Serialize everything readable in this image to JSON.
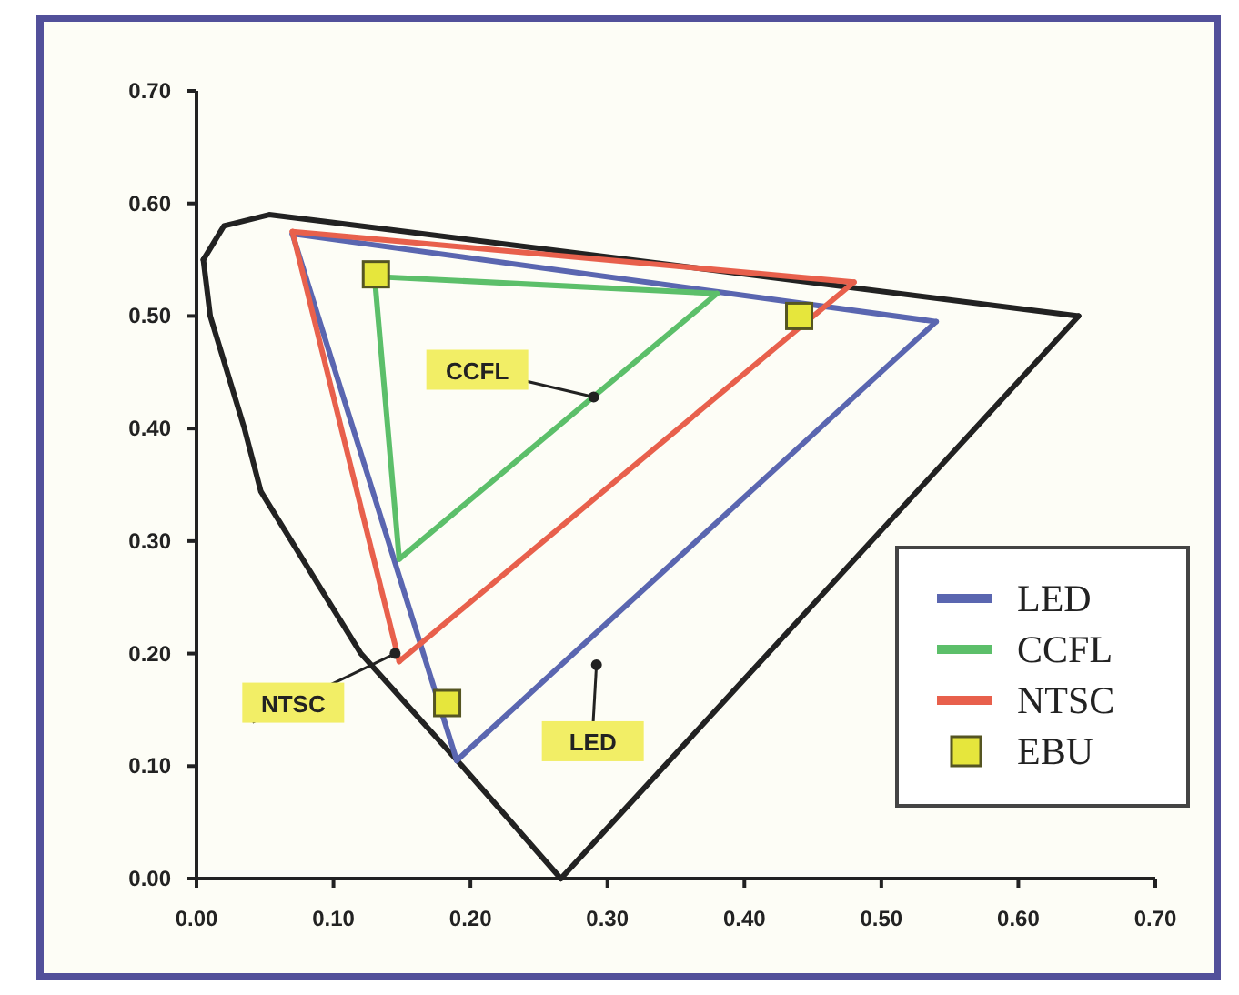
{
  "chart_data": {
    "type": "line",
    "xlim": [
      0,
      0.7
    ],
    "ylim": [
      0,
      0.7
    ],
    "xticks": [
      {
        "value": 0,
        "label": "0.00"
      },
      {
        "value": 0.1,
        "label": "0.10"
      },
      {
        "value": 0.2,
        "label": "0.20"
      },
      {
        "value": 0.3,
        "label": "0.30"
      },
      {
        "value": 0.4,
        "label": "0.40"
      },
      {
        "value": 0.5,
        "label": "0.50"
      },
      {
        "value": 0.6,
        "label": "0.60"
      },
      {
        "value": 0.7,
        "label": "0.70"
      }
    ],
    "yticks": [
      {
        "value": 0,
        "label": "0.00"
      },
      {
        "value": 0.1,
        "label": "0.10"
      },
      {
        "value": 0.2,
        "label": "0.20"
      },
      {
        "value": 0.3,
        "label": "0.30"
      },
      {
        "value": 0.4,
        "label": "0.40"
      },
      {
        "value": 0.5,
        "label": "0.50"
      },
      {
        "value": 0.6,
        "label": "0.60"
      },
      {
        "value": 0.7,
        "label": "0.70"
      }
    ],
    "grid": false,
    "legend": "bottom right",
    "line_style": "solid",
    "marker": "none",
    "series": [
      {
        "color": "#222222",
        "x": [
          0.005,
          0.01,
          0.035,
          0.047,
          0.12,
          0.194,
          0.266
        ],
        "values": [
          0.55,
          0.5,
          0.4,
          0.344,
          0.2,
          0.1,
          0
        ]
      },
      {
        "color": "#222222",
        "x": [
          0.005,
          0.02,
          0.053,
          0.1,
          0.644
        ],
        "values": [
          0.55,
          0.58,
          0.59,
          0.583,
          0.5
        ]
      },
      {
        "color": "#222222",
        "x": [
          0.266,
          0.644
        ],
        "values": [
          0,
          0.5
        ]
      },
      {
        "name": "LED",
        "color": "#5a66b0",
        "x": [
          0.07,
          0.54
        ],
        "values": [
          0.573,
          0.495
        ]
      },
      {
        "color": "#5a66b0",
        "x": [
          0.19,
          0.54
        ],
        "values": [
          0.105,
          0.495
        ]
      },
      {
        "color": "#5a66b0",
        "x": [
          0.07,
          0.19
        ],
        "values": [
          0.573,
          0.105
        ]
      },
      {
        "name": "CCFL",
        "color": "#5cbf6a",
        "x": [
          0.13,
          0.38
        ],
        "values": [
          0.535,
          0.52
        ]
      },
      {
        "color": "#5cbf6a",
        "x": [
          0.148,
          0.38
        ],
        "values": [
          0.284,
          0.52
        ]
      },
      {
        "color": "#5cbf6a",
        "x": [
          0.13,
          0.148
        ],
        "values": [
          0.535,
          0.284
        ]
      },
      {
        "name": "NTSC",
        "color": "#e8604c",
        "x": [
          0.07,
          0.48
        ],
        "values": [
          0.575,
          0.53
        ]
      },
      {
        "color": "#e8604c",
        "x": [
          0.148,
          0.48
        ],
        "values": [
          0.193,
          0.53
        ]
      },
      {
        "color": "#e8604c",
        "x": [
          0.07,
          0.148
        ],
        "values": [
          0.575,
          0.193
        ]
      },
      {
        "type": "scatter",
        "name": "EBU",
        "color": "#e6e63c",
        "marker": "square",
        "x": [
          0.131,
          0.44,
          0.183
        ],
        "values": [
          0.537,
          0.5,
          0.156
        ]
      }
    ],
    "annotations": [
      {
        "text": "CCFL",
        "x": 0.29,
        "y": 0.428
      },
      {
        "text": "NTSC",
        "x": 0.145,
        "y": 0.2
      },
      {
        "text": "LED",
        "x": 0.292,
        "y": 0.19
      }
    ]
  }
}
